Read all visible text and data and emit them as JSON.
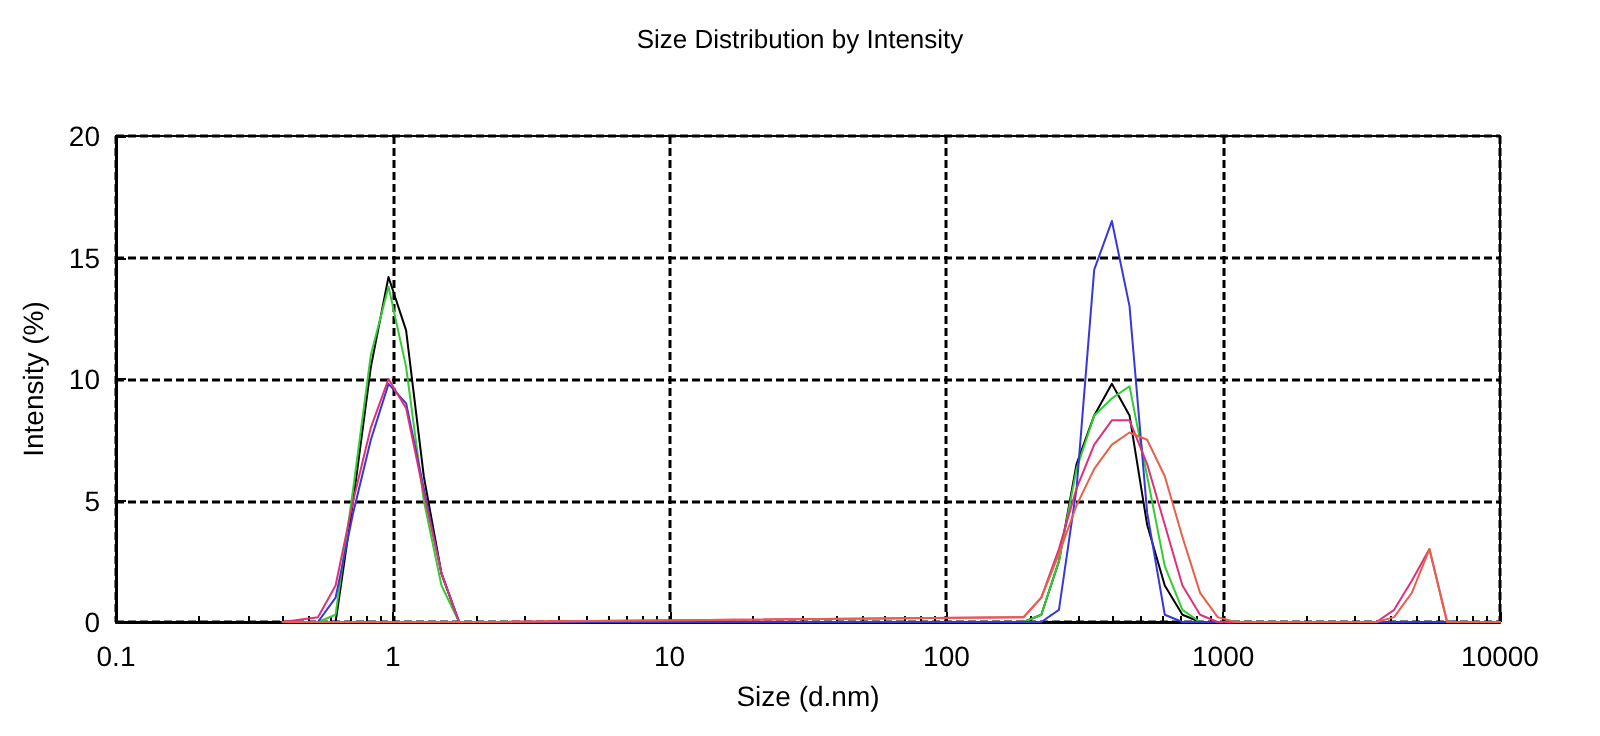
{
  "chart_data": {
    "type": "line",
    "title": "Size Distribution by Intensity",
    "xlabel": "Size (d.nm)",
    "ylabel": "Intensity (%)",
    "x": [
      0.4,
      0.5365,
      0.6213,
      0.7195,
      0.8332,
      0.9649,
      1.117,
      1.294,
      1.499,
      1.736,
      2.01,
      190.1,
      220.2,
      255,
      295.3,
      342,
      396.1,
      458.7,
      531.2,
      615.1,
      712.4,
      825,
      955.4,
      1106,
      1281,
      3580,
      4145,
      4801,
      5560,
      6439,
      10000
    ],
    "series": [
      {
        "color": "#000000",
        "values": [
          0,
          0,
          0,
          5,
          10.5,
          14.2,
          12,
          6,
          2,
          0,
          0,
          0,
          0.3,
          2.5,
          6.5,
          8.5,
          9.8,
          8.5,
          4,
          1.5,
          0.3,
          0,
          0,
          0,
          0,
          0,
          0,
          0,
          0,
          0,
          0
        ]
      },
      {
        "color": "#33cc33",
        "values": [
          0,
          0,
          0.3,
          5.5,
          11,
          13.8,
          10.5,
          5,
          1.5,
          0,
          0,
          0,
          0.3,
          2.5,
          6.3,
          8.5,
          9.2,
          9.7,
          6,
          2.3,
          0.5,
          0,
          0,
          null,
          null,
          null,
          null,
          null,
          null,
          null,
          null
        ]
      },
      {
        "color": "#3838d8",
        "values": [
          0,
          0,
          1,
          4.5,
          7.5,
          9.8,
          9,
          5.5,
          2,
          0,
          0,
          0,
          0,
          0.5,
          5.5,
          14.5,
          16.5,
          13,
          4.5,
          0.3,
          0,
          0,
          0,
          0,
          0,
          0,
          0,
          0,
          0,
          0,
          0
        ]
      },
      {
        "color": "#e0307a",
        "values": [
          0,
          0.2,
          1.5,
          5,
          8,
          10,
          8.8,
          5.3,
          2,
          0,
          0,
          0.2,
          1,
          3,
          5.5,
          7.3,
          8.3,
          8.3,
          6.5,
          4,
          1.5,
          0.3,
          0,
          0,
          0,
          0,
          0.5,
          1.7,
          3,
          0,
          0
        ]
      },
      {
        "color": "#e8604a",
        "values": [
          0,
          0,
          0,
          0,
          0,
          0,
          0,
          0,
          0,
          0,
          0,
          0.2,
          1,
          2.8,
          4.8,
          6.3,
          7.3,
          7.8,
          7.5,
          6,
          3.5,
          1.2,
          0.2,
          0,
          0,
          0,
          0.2,
          1.2,
          3,
          0,
          0
        ]
      }
    ],
    "xlim": [
      0.1,
      10000
    ],
    "xticks": [
      0.1,
      1,
      10,
      100,
      1000,
      10000
    ],
    "log": "x",
    "ylim": [
      0,
      20
    ],
    "yticks": [
      0,
      5,
      10,
      15,
      20
    ],
    "grid": true,
    "marker": "none",
    "line_style": "solid"
  }
}
